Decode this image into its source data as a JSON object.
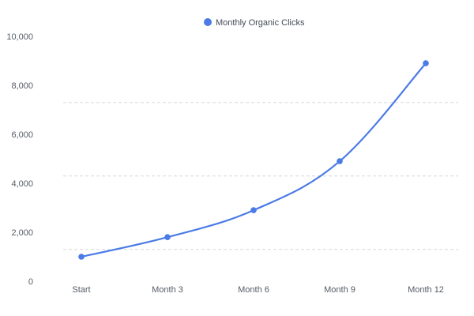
{
  "chart_data": {
    "type": "line",
    "categories": [
      "Start",
      "Month 3",
      "Month 6",
      "Month 9",
      "Month 12"
    ],
    "series": [
      {
        "name": "Monthly Organic Clicks",
        "values": [
          1000,
          1800,
          2900,
          4900,
          8900
        ],
        "color": "#4a7be6"
      }
    ],
    "ylim": [
      0,
      10000
    ],
    "yticks": [
      {
        "value": 0,
        "label": "0"
      },
      {
        "value": 2000,
        "label": "2,000"
      },
      {
        "value": 4000,
        "label": "4,000"
      },
      {
        "value": 6000,
        "label": "6,000"
      },
      {
        "value": 8000,
        "label": "8,000"
      },
      {
        "value": 10000,
        "label": "10,000"
      }
    ],
    "gridlines": [
      1300,
      4300,
      7300
    ],
    "grid": "horizontal-dashed",
    "legend_position": "top-center"
  }
}
